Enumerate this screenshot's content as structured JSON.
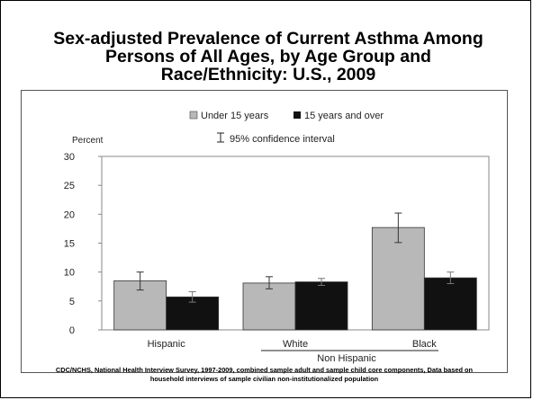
{
  "title_lines": [
    "Sex-adjusted Prevalence of Current Asthma Among",
    "Persons of All Ages, by Age Group and",
    "Race/Ethnicity: U.S., 2009"
  ],
  "source_lines": [
    "CDC/NCHS, National Health Interview Survey, 1997-2009, combined sample adult and sample child core components,  Data based on",
    "household interviews of sample civilian non-institutionalized population"
  ],
  "colors": {
    "under15": "#b8b8b8",
    "over15": "#111111",
    "frame": "#555555"
  },
  "chart_data": {
    "type": "bar",
    "categories": [
      "Hispanic",
      "White",
      "Black"
    ],
    "category_group": "Non Hispanic",
    "series": [
      {
        "name": "Under 15 years",
        "values": [
          8.5,
          8.1,
          17.7
        ],
        "ci_low": [
          6.9,
          7.1,
          15.1
        ],
        "ci_high": [
          10.0,
          9.2,
          20.2
        ]
      },
      {
        "name": "15 years and over",
        "values": [
          5.7,
          8.3,
          9.0
        ],
        "ci_low": [
          4.8,
          7.7,
          8.0
        ],
        "ci_high": [
          6.6,
          8.9,
          10.0
        ]
      }
    ],
    "ylabel": "Percent",
    "ylim": [
      0,
      30
    ],
    "yticks": [
      "0",
      "5",
      "10",
      "15",
      "20",
      "25",
      "30"
    ],
    "ci_label": "95% confidence interval",
    "legend_position": "top-center",
    "grid": false
  }
}
